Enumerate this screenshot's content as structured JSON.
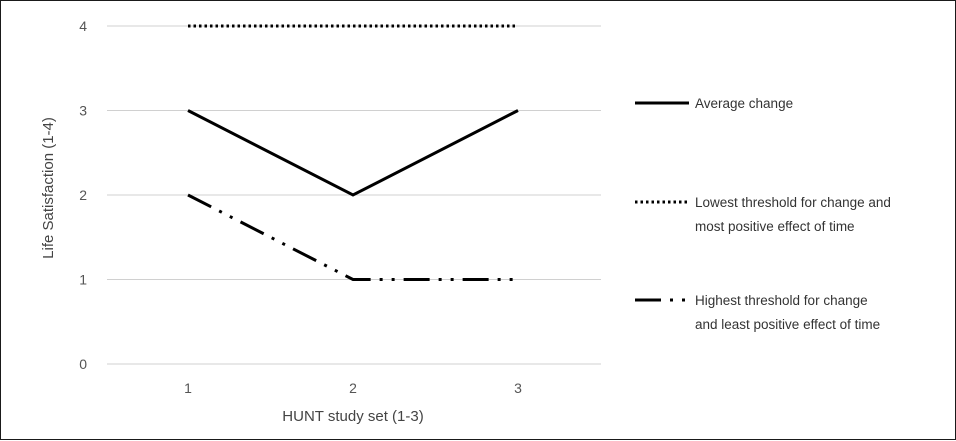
{
  "chart_data": {
    "type": "line",
    "title": "",
    "xlabel": "HUNT study set (1-3)",
    "ylabel": "Life Satisfaction (1-4)",
    "x": [
      1,
      2,
      3
    ],
    "x_tick_labels": [
      "1",
      "2",
      "3"
    ],
    "y_tick_labels": [
      "0",
      "1",
      "2",
      "3",
      "4"
    ],
    "ylim": [
      0,
      4
    ],
    "grid": "horizontal",
    "legend_position": "right",
    "series": [
      {
        "name": "Average change",
        "legend_lines": [
          "Average change"
        ],
        "values": [
          3,
          2,
          3
        ],
        "line_style": "solid",
        "color": "#000000"
      },
      {
        "name": "Lowest threshold for change and most positive effect of time",
        "legend_lines": [
          "Lowest threshold for change and",
          "most positive effect of time"
        ],
        "values": [
          4,
          4,
          4
        ],
        "line_style": "dotted",
        "color": "#000000"
      },
      {
        "name": "Highest threshold for change and least positive effect of time",
        "legend_lines": [
          "Highest threshold for change",
          "and least positive effect of time"
        ],
        "values": [
          2,
          1,
          1
        ],
        "line_style": "dash-dot-dot",
        "color": "#000000"
      }
    ]
  }
}
